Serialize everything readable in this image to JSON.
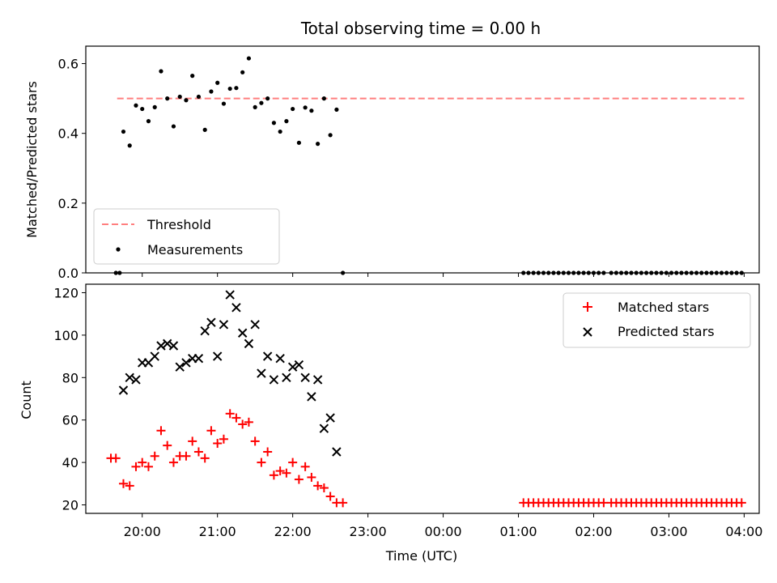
{
  "chart_data": [
    {
      "type": "scatter",
      "title": "Total observing time = 0.00 h",
      "xlabel": "",
      "ylabel": "Matched/Predicted stars",
      "xlim": [
        "19:15",
        "04:12"
      ],
      "ylim": [
        0,
        0.65
      ],
      "yticks": [
        "0.0",
        "0.2",
        "0.4",
        "0.6"
      ],
      "legend_position": "lower-left",
      "threshold": {
        "name": "Threshold",
        "value": 0.5,
        "x_range": [
          "19:40",
          "23:59:59"
        ],
        "x_range_end_next_day": "04:00",
        "color": "#ff7f7f",
        "style": "dashed"
      },
      "series": [
        {
          "name": "Measurements",
          "marker": "dot",
          "color": "#000000",
          "points": [
            [
              "19:39",
              0.0
            ],
            [
              "19:42",
              0.0
            ],
            [
              "19:45",
              0.405
            ],
            [
              "19:50",
              0.365
            ],
            [
              "19:55",
              0.48
            ],
            [
              "20:00",
              0.47
            ],
            [
              "20:05",
              0.435
            ],
            [
              "20:10",
              0.475
            ],
            [
              "20:15",
              0.578
            ],
            [
              "20:20",
              0.5
            ],
            [
              "20:25",
              0.42
            ],
            [
              "20:30",
              0.505
            ],
            [
              "20:35",
              0.495
            ],
            [
              "20:40",
              0.565
            ],
            [
              "20:45",
              0.505
            ],
            [
              "20:50",
              0.41
            ],
            [
              "20:55",
              0.52
            ],
            [
              "21:00",
              0.545
            ],
            [
              "21:05",
              0.485
            ],
            [
              "21:10",
              0.528
            ],
            [
              "21:15",
              0.53
            ],
            [
              "21:20",
              0.575
            ],
            [
              "21:25",
              0.615
            ],
            [
              "21:30",
              0.475
            ],
            [
              "21:35",
              0.487
            ],
            [
              "21:40",
              0.5
            ],
            [
              "21:45",
              0.43
            ],
            [
              "21:50",
              0.405
            ],
            [
              "21:55",
              0.435
            ],
            [
              "22:00",
              0.47
            ],
            [
              "22:05",
              0.373
            ],
            [
              "22:10",
              0.474
            ],
            [
              "22:15",
              0.465
            ],
            [
              "22:20",
              0.37
            ],
            [
              "22:25",
              0.5
            ],
            [
              "22:30",
              0.395
            ],
            [
              "22:35",
              0.468
            ],
            [
              "22:40",
              0.0
            ],
            [
              "01:04",
              0.0
            ],
            [
              "01:08",
              0.0
            ],
            [
              "01:12",
              0.0
            ],
            [
              "01:16",
              0.0
            ],
            [
              "01:20",
              0.0
            ],
            [
              "01:24",
              0.0
            ],
            [
              "01:28",
              0.0
            ],
            [
              "01:32",
              0.0
            ],
            [
              "01:36",
              0.0
            ],
            [
              "01:40",
              0.0
            ],
            [
              "01:44",
              0.0
            ],
            [
              "01:48",
              0.0
            ],
            [
              "01:52",
              0.0
            ],
            [
              "01:56",
              0.0
            ],
            [
              "02:00",
              0.0
            ],
            [
              "02:04",
              0.0
            ],
            [
              "02:08",
              0.0
            ],
            [
              "02:14",
              0.0
            ],
            [
              "02:18",
              0.0
            ],
            [
              "02:22",
              0.0
            ],
            [
              "02:26",
              0.0
            ],
            [
              "02:30",
              0.0
            ],
            [
              "02:34",
              0.0
            ],
            [
              "02:38",
              0.0
            ],
            [
              "02:42",
              0.0
            ],
            [
              "02:46",
              0.0
            ],
            [
              "02:50",
              0.0
            ],
            [
              "02:54",
              0.0
            ],
            [
              "02:58",
              0.0
            ],
            [
              "03:02",
              0.0
            ],
            [
              "03:06",
              0.0
            ],
            [
              "03:10",
              0.0
            ],
            [
              "03:14",
              0.0
            ],
            [
              "03:18",
              0.0
            ],
            [
              "03:22",
              0.0
            ],
            [
              "03:26",
              0.0
            ],
            [
              "03:30",
              0.0
            ],
            [
              "03:34",
              0.0
            ],
            [
              "03:38",
              0.0
            ],
            [
              "03:42",
              0.0
            ],
            [
              "03:46",
              0.0
            ],
            [
              "03:50",
              0.0
            ],
            [
              "03:54",
              0.0
            ],
            [
              "03:58",
              0.0
            ]
          ]
        }
      ]
    },
    {
      "type": "scatter",
      "title": "",
      "xlabel": "Time (UTC)",
      "ylabel": "Count",
      "xlim": [
        "19:15",
        "04:12"
      ],
      "ylim": [
        16,
        124
      ],
      "xticks": [
        "20:00",
        "21:00",
        "22:00",
        "23:00",
        "00:00",
        "01:00",
        "02:00",
        "03:00",
        "04:00"
      ],
      "yticks": [
        "20",
        "40",
        "60",
        "80",
        "100",
        "120"
      ],
      "legend_position": "top-right",
      "series": [
        {
          "name": "Matched stars",
          "marker": "plus",
          "color": "#ff0000",
          "points": [
            [
              "19:35",
              42
            ],
            [
              "19:39",
              42
            ],
            [
              "19:45",
              30
            ],
            [
              "19:50",
              29
            ],
            [
              "19:55",
              38
            ],
            [
              "20:00",
              40
            ],
            [
              "20:05",
              38
            ],
            [
              "20:10",
              43
            ],
            [
              "20:15",
              55
            ],
            [
              "20:20",
              48
            ],
            [
              "20:25",
              40
            ],
            [
              "20:30",
              43
            ],
            [
              "20:35",
              43
            ],
            [
              "20:40",
              50
            ],
            [
              "20:45",
              45
            ],
            [
              "20:50",
              42
            ],
            [
              "20:55",
              55
            ],
            [
              "21:00",
              49
            ],
            [
              "21:05",
              51
            ],
            [
              "21:10",
              63
            ],
            [
              "21:15",
              61
            ],
            [
              "21:20",
              58
            ],
            [
              "21:25",
              59
            ],
            [
              "21:30",
              50
            ],
            [
              "21:35",
              40
            ],
            [
              "21:40",
              45
            ],
            [
              "21:45",
              34
            ],
            [
              "21:50",
              36
            ],
            [
              "21:55",
              35
            ],
            [
              "22:00",
              40
            ],
            [
              "22:05",
              32
            ],
            [
              "22:10",
              38
            ],
            [
              "22:15",
              33
            ],
            [
              "22:20",
              29
            ],
            [
              "22:25",
              28
            ],
            [
              "22:30",
              24
            ],
            [
              "22:35",
              21
            ],
            [
              "22:40",
              21
            ],
            [
              "01:04",
              21
            ],
            [
              "01:08",
              21
            ],
            [
              "01:12",
              21
            ],
            [
              "01:16",
              21
            ],
            [
              "01:20",
              21
            ],
            [
              "01:24",
              21
            ],
            [
              "01:28",
              21
            ],
            [
              "01:32",
              21
            ],
            [
              "01:36",
              21
            ],
            [
              "01:40",
              21
            ],
            [
              "01:44",
              21
            ],
            [
              "01:48",
              21
            ],
            [
              "01:52",
              21
            ],
            [
              "01:56",
              21
            ],
            [
              "02:00",
              21
            ],
            [
              "02:04",
              21
            ],
            [
              "02:08",
              21
            ],
            [
              "02:14",
              21
            ],
            [
              "02:18",
              21
            ],
            [
              "02:22",
              21
            ],
            [
              "02:26",
              21
            ],
            [
              "02:30",
              21
            ],
            [
              "02:34",
              21
            ],
            [
              "02:38",
              21
            ],
            [
              "02:42",
              21
            ],
            [
              "02:46",
              21
            ],
            [
              "02:50",
              21
            ],
            [
              "02:54",
              21
            ],
            [
              "02:58",
              21
            ],
            [
              "03:02",
              21
            ],
            [
              "03:06",
              21
            ],
            [
              "03:10",
              21
            ],
            [
              "03:14",
              21
            ],
            [
              "03:18",
              21
            ],
            [
              "03:22",
              21
            ],
            [
              "03:26",
              21
            ],
            [
              "03:30",
              21
            ],
            [
              "03:34",
              21
            ],
            [
              "03:38",
              21
            ],
            [
              "03:42",
              21
            ],
            [
              "03:46",
              21
            ],
            [
              "03:50",
              21
            ],
            [
              "03:54",
              21
            ],
            [
              "03:58",
              21
            ]
          ]
        },
        {
          "name": "Predicted stars",
          "marker": "x",
          "color": "#000000",
          "points": [
            [
              "19:45",
              74
            ],
            [
              "19:50",
              80
            ],
            [
              "19:55",
              79
            ],
            [
              "20:00",
              87
            ],
            [
              "20:05",
              87
            ],
            [
              "20:10",
              90
            ],
            [
              "20:15",
              95
            ],
            [
              "20:20",
              96
            ],
            [
              "20:25",
              95
            ],
            [
              "20:30",
              85
            ],
            [
              "20:35",
              87
            ],
            [
              "20:40",
              89
            ],
            [
              "20:45",
              89
            ],
            [
              "20:50",
              102
            ],
            [
              "20:55",
              106
            ],
            [
              "21:00",
              90
            ],
            [
              "21:05",
              105
            ],
            [
              "21:10",
              119
            ],
            [
              "21:15",
              113
            ],
            [
              "21:20",
              101
            ],
            [
              "21:25",
              96
            ],
            [
              "21:30",
              105
            ],
            [
              "21:35",
              82
            ],
            [
              "21:40",
              90
            ],
            [
              "21:45",
              79
            ],
            [
              "21:50",
              89
            ],
            [
              "21:55",
              80
            ],
            [
              "22:00",
              85
            ],
            [
              "22:05",
              86
            ],
            [
              "22:10",
              80
            ],
            [
              "22:15",
              71
            ],
            [
              "22:20",
              79
            ],
            [
              "22:25",
              56
            ],
            [
              "22:30",
              61
            ],
            [
              "22:35",
              45
            ]
          ]
        }
      ]
    }
  ]
}
